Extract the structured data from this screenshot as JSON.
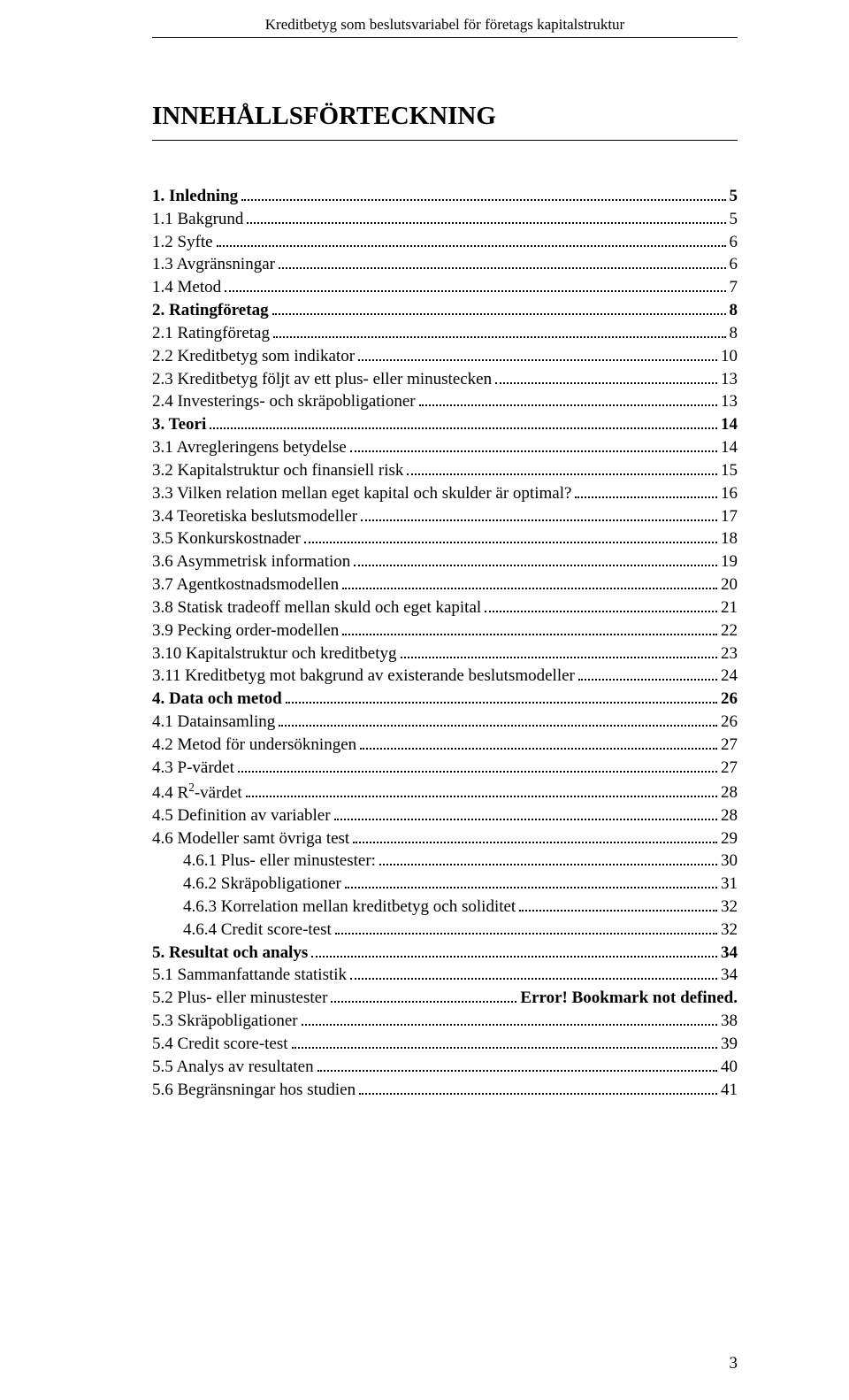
{
  "header": "Kreditbetyg som beslutsvariabel för företags kapitalstruktur",
  "title": "INNEHÅLLSFÖRTECKNING",
  "entries": [
    {
      "label": "1.      Inledning",
      "page": "5",
      "bold": true,
      "indent": 0
    },
    {
      "label": "1.1 Bakgrund",
      "page": "5",
      "bold": false,
      "indent": 0
    },
    {
      "label": "1.2 Syfte",
      "page": "6",
      "bold": false,
      "indent": 0
    },
    {
      "label": "1.3 Avgränsningar",
      "page": "6",
      "bold": false,
      "indent": 0
    },
    {
      "label": "1.4 Metod",
      "page": "7",
      "bold": false,
      "indent": 0
    },
    {
      "label": "2.      Ratingföretag",
      "page": "8",
      "bold": true,
      "indent": 0
    },
    {
      "label": "2.1 Ratingföretag",
      "page": "8",
      "bold": false,
      "indent": 0
    },
    {
      "label": "2.2 Kreditbetyg som indikator",
      "page": "10",
      "bold": false,
      "indent": 0
    },
    {
      "label": "2.3 Kreditbetyg följt av ett plus- eller minustecken",
      "page": "13",
      "bold": false,
      "indent": 0
    },
    {
      "label": "2.4 Investerings- och skräpobligationer",
      "page": "13",
      "bold": false,
      "indent": 0
    },
    {
      "label": "3.      Teori",
      "page": "14",
      "bold": true,
      "indent": 0
    },
    {
      "label": "3.1 Avregleringens betydelse",
      "page": "14",
      "bold": false,
      "indent": 0
    },
    {
      "label": "3.2 Kapitalstruktur och finansiell risk",
      "page": "15",
      "bold": false,
      "indent": 0
    },
    {
      "label": "3.3 Vilken relation mellan eget kapital och skulder är optimal?",
      "page": "16",
      "bold": false,
      "indent": 0
    },
    {
      "label": "3.4 Teoretiska beslutsmodeller",
      "page": "17",
      "bold": false,
      "indent": 0
    },
    {
      "label": "3.5 Konkurskostnader",
      "page": "18",
      "bold": false,
      "indent": 0
    },
    {
      "label": "3.6 Asymmetrisk information",
      "page": "19",
      "bold": false,
      "indent": 0
    },
    {
      "label": "3.7 Agentkostnadsmodellen",
      "page": "20",
      "bold": false,
      "indent": 0
    },
    {
      "label": "3.8 Statisk tradeoff mellan skuld och eget kapital",
      "page": "21",
      "bold": false,
      "indent": 0
    },
    {
      "label": "3.9 Pecking order-modellen",
      "page": "22",
      "bold": false,
      "indent": 0
    },
    {
      "label": "3.10 Kapitalstruktur och kreditbetyg",
      "page": "23",
      "bold": false,
      "indent": 0
    },
    {
      "label": "3.11 Kreditbetyg mot bakgrund av existerande beslutsmodeller",
      "page": "24",
      "bold": false,
      "indent": 0
    },
    {
      "label": "4.      Data och metod",
      "page": "26",
      "bold": true,
      "indent": 0
    },
    {
      "label": "4.1 Datainsamling",
      "page": "26",
      "bold": false,
      "indent": 0
    },
    {
      "label": "4.2 Metod för undersökningen",
      "page": "27",
      "bold": false,
      "indent": 0
    },
    {
      "label": "4.3 P-värdet",
      "page": "27",
      "bold": false,
      "indent": 0
    },
    {
      "label": "4.4 R²-värdet",
      "page": "28",
      "bold": false,
      "indent": 0,
      "sup": true
    },
    {
      "label": "4.5 Definition av variabler",
      "page": "28",
      "bold": false,
      "indent": 0
    },
    {
      "label": "4.6 Modeller samt övriga test",
      "page": "29",
      "bold": false,
      "indent": 0
    },
    {
      "label": "4.6.1      Plus- eller minustester:",
      "page": "30",
      "bold": false,
      "indent": 1
    },
    {
      "label": "4.6.2      Skräpobligationer",
      "page": "31",
      "bold": false,
      "indent": 1
    },
    {
      "label": "4.6.3      Korrelation mellan kreditbetyg och soliditet",
      "page": "32",
      "bold": false,
      "indent": 1
    },
    {
      "label": "4.6.4      Credit score-test",
      "page": "32",
      "bold": false,
      "indent": 1
    },
    {
      "label": "5.      Resultat och analys",
      "page": "34",
      "bold": true,
      "indent": 0
    },
    {
      "label": "5.1 Sammanfattande statistik",
      "page": "34",
      "bold": false,
      "indent": 0
    },
    {
      "label": "5.2 Plus- eller minustester",
      "page": "Error! Bookmark not defined.",
      "bold": false,
      "indent": 0,
      "pageBold": true
    },
    {
      "label": "5.3 Skräpobligationer",
      "page": "38",
      "bold": false,
      "indent": 0
    },
    {
      "label": "5.4 Credit score-test",
      "page": "39",
      "bold": false,
      "indent": 0
    },
    {
      "label": "5.5 Analys av resultaten",
      "page": "40",
      "bold": false,
      "indent": 0
    },
    {
      "label": "5.6 Begränsningar hos studien",
      "page": "41",
      "bold": false,
      "indent": 0
    }
  ],
  "pageNumber": "3"
}
